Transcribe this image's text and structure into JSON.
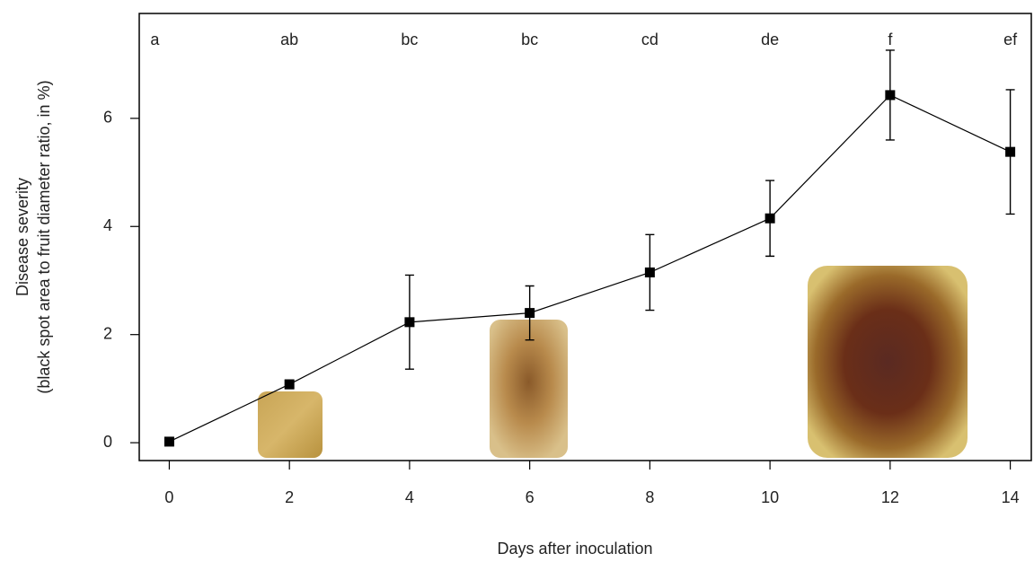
{
  "chart_data": {
    "type": "line",
    "xlabel": "Days after inoculation",
    "ylabel": [
      "Disease severity",
      "(black spot area to fruit diameter ratio, in %)"
    ],
    "x": [
      0,
      2,
      4,
      6,
      8,
      10,
      12,
      14
    ],
    "series": [
      {
        "color": "#000000",
        "values": [
          0.02,
          1.08,
          2.23,
          2.4,
          3.15,
          4.15,
          6.43,
          5.38
        ],
        "errors": [
          0.02,
          0.08,
          0.87,
          0.5,
          0.7,
          0.7,
          0.83,
          1.15
        ]
      }
    ],
    "group_letters": [
      "a",
      "ab",
      "bc",
      "bc",
      "cd",
      "de",
      "f",
      "ef"
    ],
    "xlim": [
      -0.5,
      14.35
    ],
    "ylim": [
      -0.33,
      7.94
    ],
    "xticks": [
      0,
      2,
      4,
      6,
      8,
      10,
      12,
      14
    ],
    "yticks": [
      0,
      2,
      4,
      6
    ]
  }
}
